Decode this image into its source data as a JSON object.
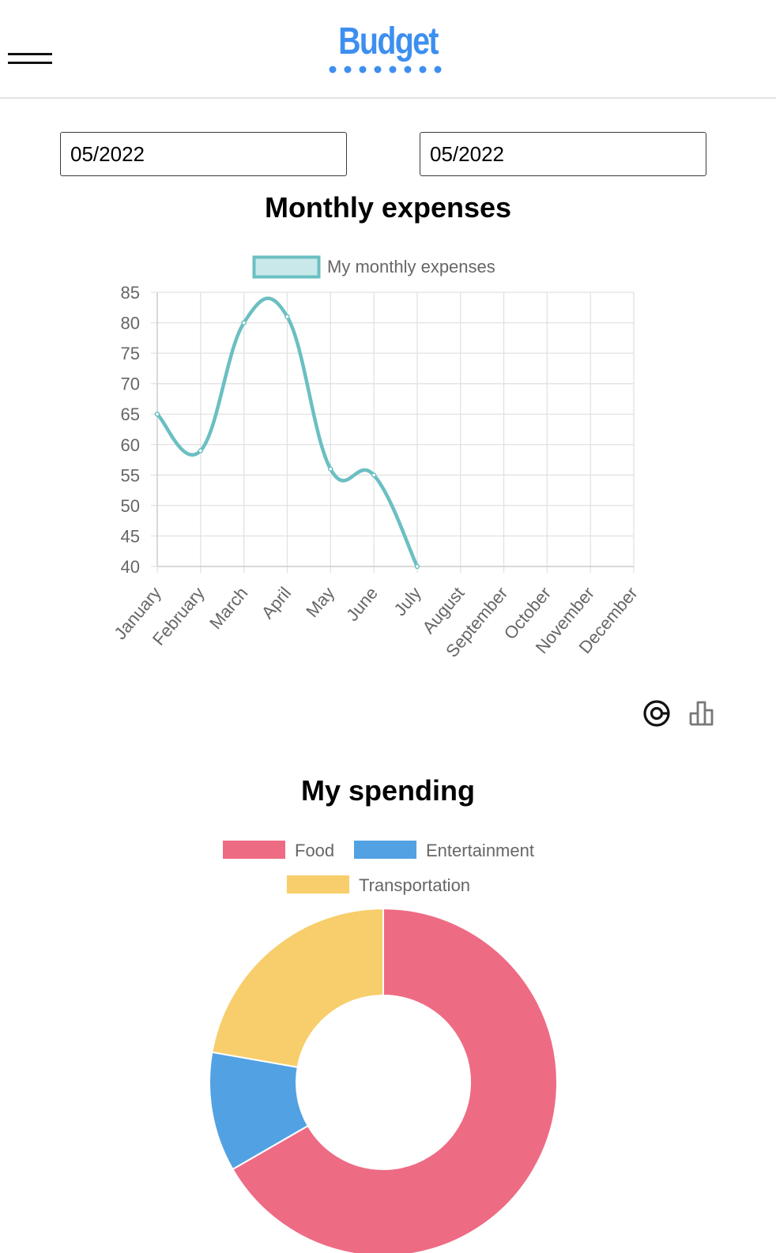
{
  "header": {
    "logo_text": "Budget",
    "menu_icon": "hamburger-menu-icon"
  },
  "filters": {
    "from_value": "05/2022",
    "to_value": "05/2022"
  },
  "view_toggle": {
    "donut_icon": "donut-chart-icon",
    "bar_icon": "bar-chart-icon"
  },
  "colors": {
    "brand": "#3d8ff0",
    "line": "#6bbfc2",
    "line_fill": "#c9e8e9",
    "food": "#ee6b84",
    "entertainment": "#52a1e3",
    "transportation": "#f7ce6b"
  },
  "chart_data": [
    {
      "type": "line",
      "title": "Monthly expenses",
      "categories": [
        "January",
        "February",
        "March",
        "April",
        "May",
        "June",
        "July",
        "August",
        "September",
        "October",
        "November",
        "December"
      ],
      "series": [
        {
          "name": "My monthly expenses",
          "values": [
            65,
            59,
            80,
            81,
            56,
            55,
            40,
            null,
            null,
            null,
            null,
            null
          ]
        }
      ],
      "ylim": [
        40,
        85
      ],
      "yticks": [
        85,
        80,
        75,
        70,
        65,
        60,
        55,
        50,
        45,
        40
      ],
      "grid": true,
      "legend": "top"
    },
    {
      "type": "pie",
      "variant": "doughnut",
      "title": "My spending",
      "labels": [
        "Food",
        "Entertainment",
        "Transportation"
      ],
      "values": [
        300,
        50,
        100
      ],
      "legend": "top"
    }
  ]
}
